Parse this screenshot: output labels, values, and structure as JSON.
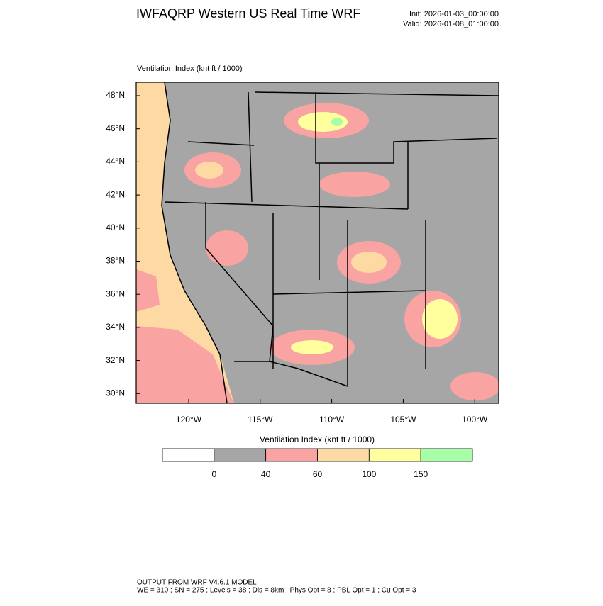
{
  "header": {
    "title": "IWFAQRP Western US Real Time WRF",
    "init": "Init: 2026-01-03_00:00:00",
    "valid": "Valid: 2026-01-08_01:00:00"
  },
  "map": {
    "label": "Ventilation Index   (knt ft / 1000)",
    "lat_labels": [
      "48°N",
      "46°N",
      "44°N",
      "42°N",
      "40°N",
      "38°N",
      "36°N",
      "34°N",
      "32°N",
      "30°N"
    ],
    "lon_labels": [
      "120°W",
      "115°W",
      "110°W",
      "105°W",
      "100°W"
    ]
  },
  "colorbar": {
    "title": "Ventilation Index   (knt ft / 1000)",
    "colors": [
      "#ffffff",
      "#a6a6a6",
      "#f9a3a3",
      "#fdd9a3",
      "#ffff9e",
      "#a6ffa6"
    ],
    "labels": [
      "0",
      "40",
      "60",
      "100",
      "150"
    ]
  },
  "footer": {
    "line1": "OUTPUT FROM WRF V4.6.1 MODEL",
    "line2": "WE = 310 ; SN = 275 ; Levels = 38 ; Dis = 8km ; Phys Opt = 8 ; PBL Opt = 1 ; Cu Opt = 3"
  }
}
